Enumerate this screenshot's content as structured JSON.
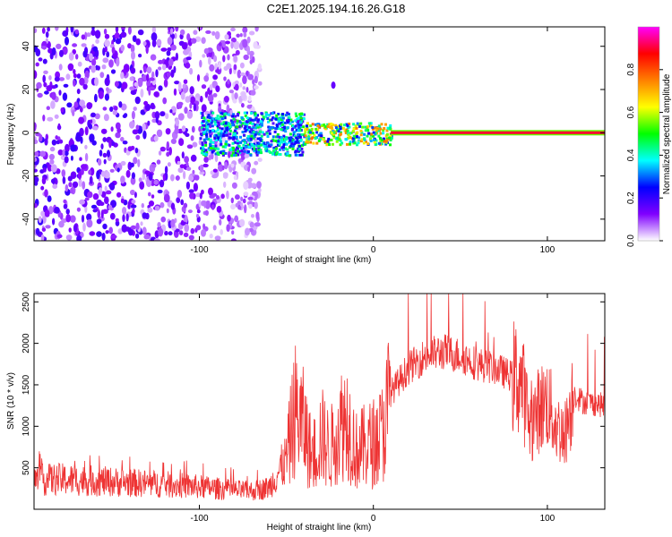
{
  "title": "C2E1.2025.194.16.26.G18",
  "chart_data": [
    {
      "type": "heatmap",
      "xlabel": "Height of straight line (km)",
      "ylabel": "Frequency (Hz)",
      "xlim": [
        -195,
        133
      ],
      "ylim": [
        -50,
        49
      ],
      "xticks": [
        -100,
        0,
        100
      ],
      "yticks": [
        -40,
        -20,
        0,
        20,
        40
      ],
      "colorbar": {
        "label": "Normalized spectral amplitude",
        "range": [
          0.0,
          1.0
        ],
        "ticks": [
          "0.0",
          "0.2",
          "0.4",
          "0.6",
          "0.8"
        ],
        "tick_values": [
          0.0,
          0.2,
          0.4,
          0.6,
          0.8
        ],
        "colormap": [
          "#ffffff",
          "#8000ff",
          "#0000ff",
          "#00ffff",
          "#00ff00",
          "#ffff00",
          "#ff8000",
          "#ff0000",
          "#ff00ff"
        ]
      },
      "regions": [
        {
          "x_range": [
            -195,
            -65
          ],
          "freq_range": [
            -50,
            49
          ],
          "amplitude": 0.12,
          "description": "broadband noise"
        },
        {
          "x_range": [
            -100,
            -40
          ],
          "freq_range": [
            -10,
            10
          ],
          "amplitude": 0.4
        },
        {
          "x_range": [
            -40,
            10
          ],
          "freq_range": [
            -5,
            5
          ],
          "amplitude": 0.6
        },
        {
          "x_range": [
            10,
            133
          ],
          "freq_range": [
            -1,
            1
          ],
          "amplitude": 0.9
        }
      ],
      "features": [
        {
          "x": -23,
          "freq": 22,
          "amplitude": 0.15
        }
      ],
      "line_frequency": 0,
      "grid": false
    },
    {
      "type": "line",
      "xlabel": "Height of straight line (km)",
      "ylabel": "SNR (10 * v/v)",
      "xlim": [
        -195,
        133
      ],
      "ylim": [
        0,
        2600
      ],
      "xticks": [
        -100,
        0,
        100
      ],
      "yticks": [
        500,
        1000,
        1500,
        2000,
        2500
      ],
      "color": "#ee3333",
      "series": [
        {
          "x": [
            -195,
            -180,
            -160,
            -140,
            -120,
            -100,
            -80,
            -70,
            -60,
            -50,
            -45,
            -40,
            -35,
            -30,
            -25,
            -20,
            -15,
            -10,
            -5,
            0,
            5,
            10,
            20,
            30,
            40,
            50,
            60,
            70,
            80,
            85,
            90,
            95,
            100,
            105,
            110,
            115,
            120,
            133
          ],
          "values": [
            350,
            360,
            340,
            320,
            300,
            270,
            230,
            220,
            260,
            600,
            1200,
            1000,
            600,
            900,
            700,
            1000,
            1100,
            700,
            750,
            800,
            900,
            1400,
            1700,
            1850,
            1900,
            1850,
            1750,
            1700,
            1600,
            1550,
            1000,
            1200,
            1300,
            1000,
            900,
            1400,
            1300,
            1250
          ]
        }
      ],
      "grid": false
    }
  ]
}
